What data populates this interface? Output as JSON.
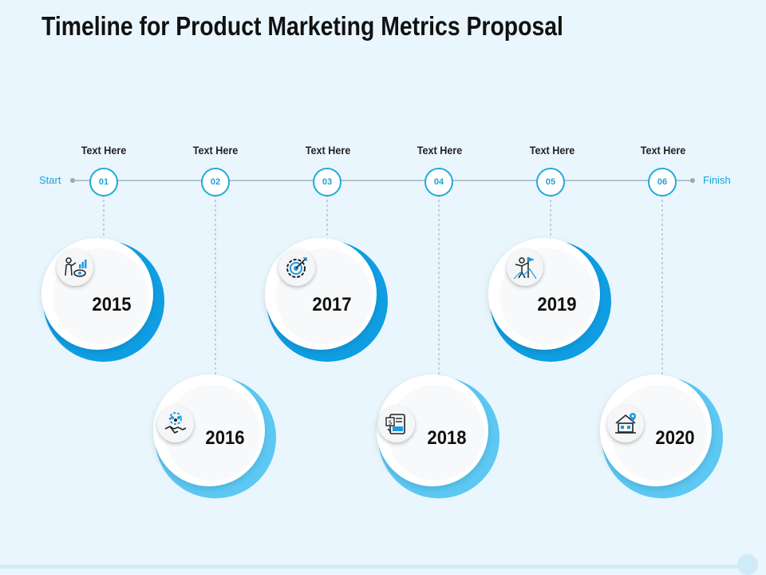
{
  "title": "Timeline for Product Marketing Metrics Proposal",
  "start_label": "Start",
  "finish_label": "Finish",
  "colors": {
    "accent_dark": "#0f9ee3",
    "accent_light": "#5cc8f3",
    "line": "#b8c4cc",
    "node_border": "#22a9dc"
  },
  "milestones": [
    {
      "number": "01",
      "heading": "Text Here",
      "year": "2015",
      "icon": "vision-chart-icon"
    },
    {
      "number": "02",
      "heading": "Text Here",
      "year": "2016",
      "icon": "team-handshake-icon"
    },
    {
      "number": "03",
      "heading": "Text Here",
      "year": "2017",
      "icon": "target-gear-icon"
    },
    {
      "number": "04",
      "heading": "Text Here",
      "year": "2018",
      "icon": "financial-document-icon"
    },
    {
      "number": "05",
      "heading": "Text Here",
      "year": "2019",
      "icon": "success-flag-icon"
    },
    {
      "number": "06",
      "heading": "Text Here",
      "year": "2020",
      "icon": "home-location-icon"
    }
  ]
}
